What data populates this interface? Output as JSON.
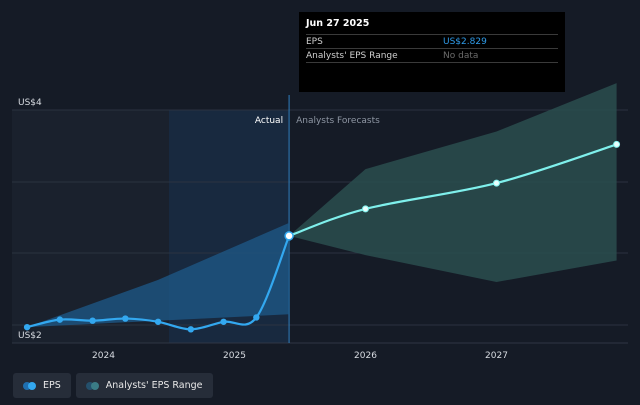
{
  "chart_data": {
    "type": "line",
    "y_axis_labels": [
      "US$4",
      "US$2"
    ],
    "x_tick_labels": [
      "2024",
      "2025",
      "2026",
      "2027"
    ],
    "section_labels": {
      "actual": "Actual",
      "forecast": "Analysts Forecasts"
    },
    "series": [
      {
        "name": "EPS",
        "points": [
          {
            "x": "2023-06",
            "y": 1.98
          },
          {
            "x": "2023-09",
            "y": 2.05
          },
          {
            "x": "2023-12",
            "y": 2.04
          },
          {
            "x": "2024-03",
            "y": 2.06
          },
          {
            "x": "2024-06",
            "y": 2.03
          },
          {
            "x": "2024-09",
            "y": 1.96
          },
          {
            "x": "2024-12",
            "y": 2.03
          },
          {
            "x": "2025-03",
            "y": 2.07
          },
          {
            "x": "2025-06",
            "y": 2.829
          }
        ]
      },
      {
        "name": "EPS forecast",
        "points": [
          {
            "x": "2025-06",
            "y": 2.829
          },
          {
            "x": "2026-01",
            "y": 3.08
          },
          {
            "x": "2027-01",
            "y": 3.32
          },
          {
            "x": "2027-12",
            "y": 3.68
          }
        ]
      }
    ],
    "analyst_range": {
      "name": "Analysts' EPS Range",
      "low": [
        {
          "x": "2025-06",
          "y": 2.829
        },
        {
          "x": "2026-01",
          "y": 2.65
        },
        {
          "x": "2027-01",
          "y": 2.4
        },
        {
          "x": "2027-12",
          "y": 2.6
        }
      ],
      "high": [
        {
          "x": "2025-06",
          "y": 2.829
        },
        {
          "x": "2026-01",
          "y": 3.45
        },
        {
          "x": "2027-01",
          "y": 3.8
        },
        {
          "x": "2027-12",
          "y": 4.25
        }
      ]
    },
    "past_band": {
      "low": [
        {
          "x": "2023-06",
          "y": 1.98
        },
        {
          "x": "2025-06",
          "y": 2.1
        }
      ],
      "high": [
        {
          "x": "2023-06",
          "y": 1.98
        },
        {
          "x": "2024-06",
          "y": 2.42
        },
        {
          "x": "2025-06",
          "y": 2.95
        }
      ]
    },
    "highlight_x": "2025-06",
    "grid": true,
    "legend_position": "bottom-left"
  },
  "tooltip": {
    "date": "Jun 27 2025",
    "rows": [
      {
        "label": "EPS",
        "value": "US$2.829"
      },
      {
        "label": "Analysts' EPS Range",
        "value": "No data"
      }
    ]
  },
  "legend": [
    {
      "label": "EPS",
      "icon": "eps-legend-icon"
    },
    {
      "label": "Analysts' EPS Range",
      "icon": "range-legend-icon"
    }
  ],
  "colors": {
    "background": "#151b26",
    "eps_line": "#33a8f0",
    "forecast_line": "#7ff0ec",
    "range_fill": "#2a4d4f",
    "past_band_fill": "#1e5a8a"
  }
}
